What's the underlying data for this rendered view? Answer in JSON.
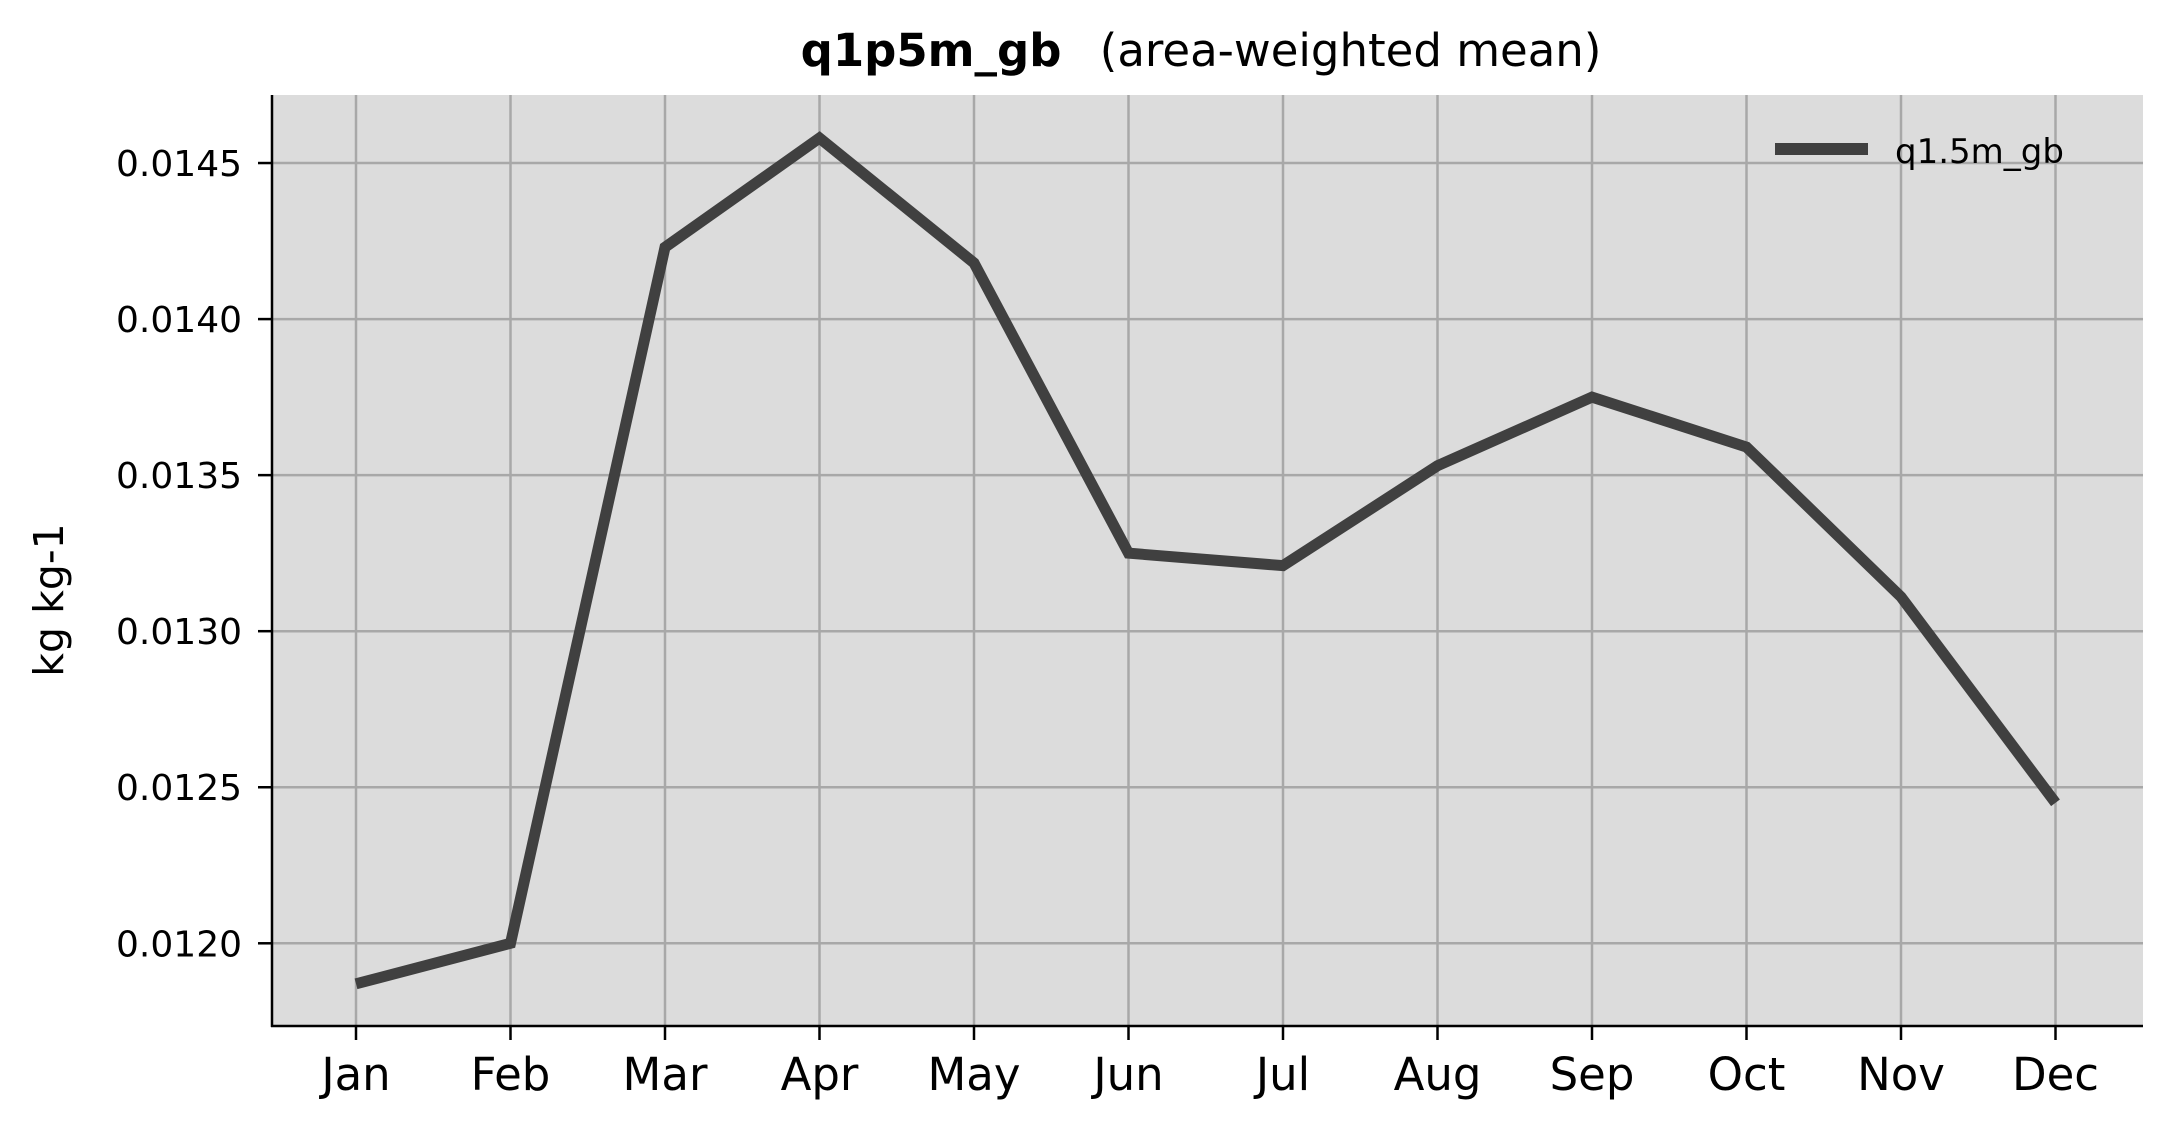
{
  "colors": {
    "background": "#ffffff",
    "plot_area": "#dcdcdc",
    "grid": "#a8a8a8",
    "line": "#404040",
    "axis": "#000000"
  },
  "chart_data": {
    "type": "line",
    "title": "q1p5m_gb",
    "subtitle": "(area-weighted mean)",
    "xlabel": "",
    "ylabel": "kg kg-1",
    "categories": [
      "Jan",
      "Feb",
      "Mar",
      "Apr",
      "May",
      "Jun",
      "Jul",
      "Aug",
      "Sep",
      "Oct",
      "Nov",
      "Dec"
    ],
    "series": [
      {
        "name": "q1.5m_gb",
        "values": [
          0.01187,
          0.012,
          0.01423,
          0.01458,
          0.01418,
          0.01325,
          0.01321,
          0.01353,
          0.01375,
          0.01359,
          0.01311,
          0.01245
        ]
      }
    ],
    "yticks": [
      0.012,
      0.0125,
      0.013,
      0.0135,
      0.014,
      0.0145
    ],
    "ytick_labels": [
      "0.0120",
      "0.0125",
      "0.0130",
      "0.0135",
      "0.0140",
      "0.0145"
    ],
    "ylim": [
      0.011735,
      0.014718
    ],
    "grid": true,
    "legend_position": "top-right"
  }
}
